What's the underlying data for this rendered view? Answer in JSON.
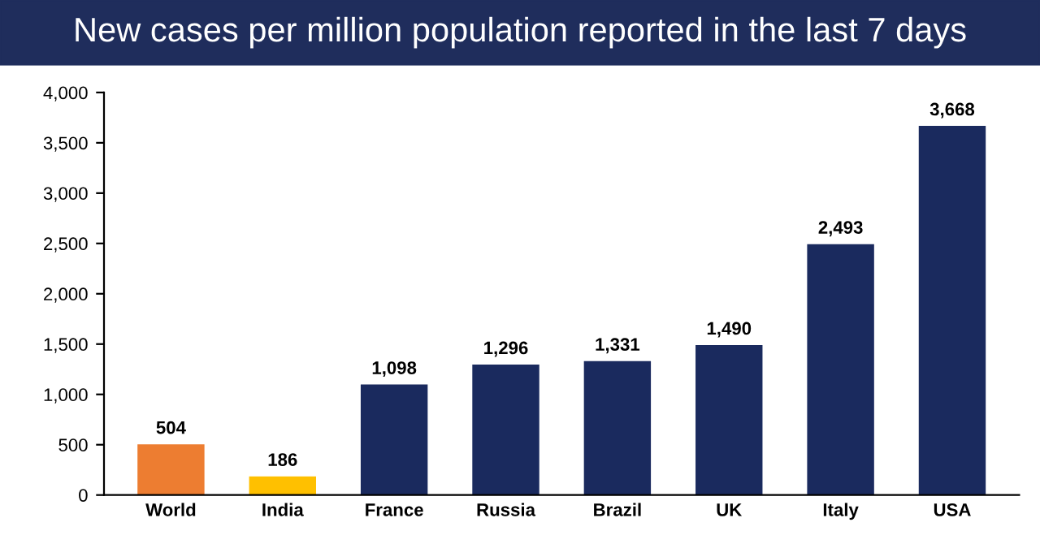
{
  "chart_data": {
    "type": "bar",
    "title": "New cases per million population reported in the last 7 days",
    "categories": [
      "World",
      "India",
      "France",
      "Russia",
      "Brazil",
      "UK",
      "Italy",
      "USA"
    ],
    "values": [
      504,
      186,
      1098,
      1296,
      1331,
      1490,
      2493,
      3668
    ],
    "colors": [
      "#ed7d31",
      "#ffc000",
      "#1a2a5e",
      "#1a2a5e",
      "#1a2a5e",
      "#1a2a5e",
      "#1a2a5e",
      "#1a2a5e"
    ],
    "value_labels": [
      "504",
      "186",
      "1,098",
      "1,296",
      "1,331",
      "1,490",
      "2,493",
      "3,668"
    ],
    "ylim": [
      0,
      4000
    ],
    "yticks": [
      {
        "value": 0,
        "label": "0"
      },
      {
        "value": 500,
        "label": "500"
      },
      {
        "value": 1000,
        "label": "1,000"
      },
      {
        "value": 1500,
        "label": "1,500"
      },
      {
        "value": 2000,
        "label": "2,000"
      },
      {
        "value": 2500,
        "label": "2,500"
      },
      {
        "value": 3000,
        "label": "3,000"
      },
      {
        "value": 3500,
        "label": "3,500"
      },
      {
        "value": 4000,
        "label": "4,000"
      }
    ],
    "grid": false
  }
}
